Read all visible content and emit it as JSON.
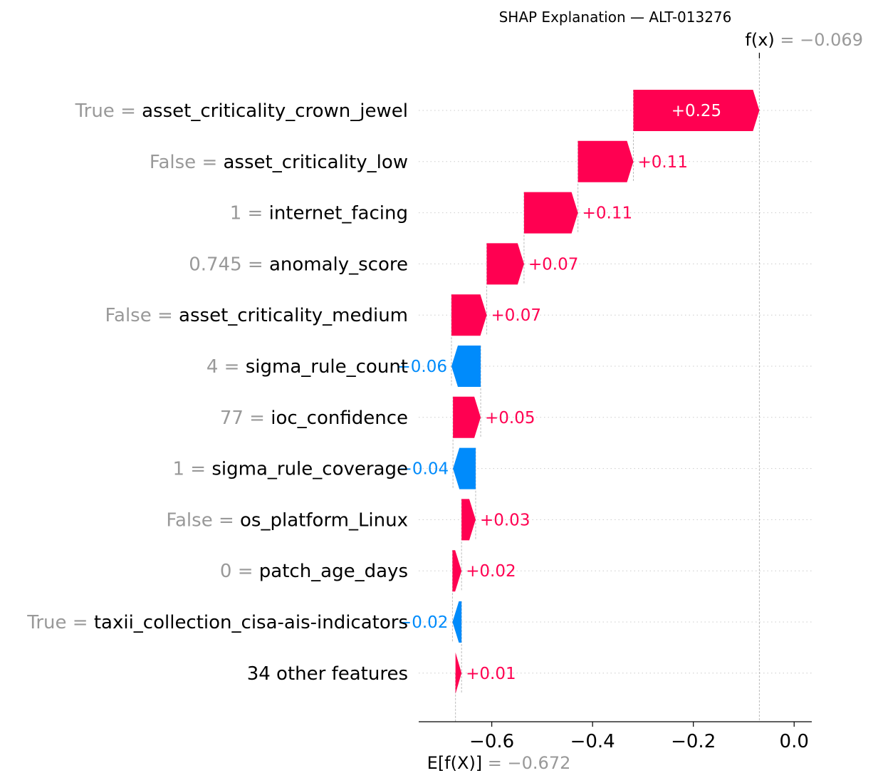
{
  "chart_data": {
    "type": "waterfall",
    "title": "SHAP Explanation — ALT-013276",
    "base_value": -0.672,
    "output_value": -0.069,
    "base_value_label": {
      "symbol": "E[f(X)]",
      "value_text": "= −0.672"
    },
    "output_value_label": {
      "symbol": "f(x)",
      "value_text": "= −0.069"
    },
    "xlim": [
      -0.745,
      0.035
    ],
    "xticks": [
      {
        "value": -0.6,
        "label": "−0.6"
      },
      {
        "value": -0.4,
        "label": "−0.4"
      },
      {
        "value": -0.2,
        "label": "−0.2"
      },
      {
        "value": 0.0,
        "label": "0.0"
      }
    ],
    "colors": {
      "positive": "#ff0051",
      "negative": "#008bfb",
      "feature_value": "#999999",
      "axis": "#000000"
    },
    "features": [
      {
        "value_text": "True",
        "name": "asset_criticality_crown_jewel",
        "shap": 0.25,
        "label": "+0.25"
      },
      {
        "value_text": "False",
        "name": "asset_criticality_low",
        "shap": 0.11,
        "label": "+0.11"
      },
      {
        "value_text": "1",
        "name": "internet_facing",
        "shap": 0.107,
        "label": "+0.11"
      },
      {
        "value_text": "0.745",
        "name": "anomaly_score",
        "shap": 0.074,
        "label": "+0.07"
      },
      {
        "value_text": "False",
        "name": "asset_criticality_medium",
        "shap": 0.07,
        "label": "+0.07"
      },
      {
        "value_text": "4",
        "name": "sigma_rule_count",
        "shap": -0.058,
        "label": "−0.06"
      },
      {
        "value_text": "77",
        "name": "ioc_confidence",
        "shap": 0.055,
        "label": "+0.05"
      },
      {
        "value_text": "1",
        "name": "sigma_rule_coverage",
        "shap": -0.045,
        "label": "−0.04"
      },
      {
        "value_text": "False",
        "name": "os_platform_Linux",
        "shap": 0.028,
        "label": "+0.03"
      },
      {
        "value_text": "0",
        "name": "patch_age_days",
        "shap": 0.018,
        "label": "+0.02"
      },
      {
        "value_text": "True",
        "name": "taxii_collection_cisa-ais-indicators",
        "shap": -0.018,
        "label": "−0.02"
      },
      {
        "value_text": "",
        "name": "34 other features",
        "shap": 0.012,
        "label": "+0.01"
      }
    ]
  }
}
